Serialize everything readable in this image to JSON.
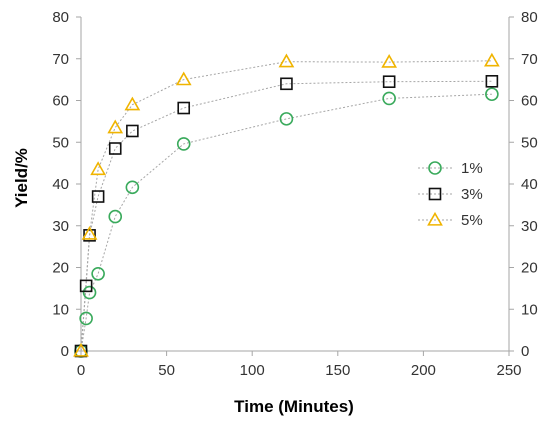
{
  "chart_data": {
    "type": "scatter",
    "xlabel": "Time (Minutes)",
    "ylabel": "Yield/%",
    "xlim": [
      0,
      250
    ],
    "ylim": [
      0,
      80
    ],
    "xticks": [
      0,
      50,
      100,
      150,
      200,
      250
    ],
    "yticks": [
      0,
      10,
      20,
      30,
      40,
      50,
      60,
      70,
      80
    ],
    "secondary_y_axis": true,
    "grid": false,
    "connecting_lines": "dotted",
    "legend_position": "right",
    "series": [
      {
        "name": "1%",
        "marker": "circle",
        "color": "#3aaa5c",
        "x": [
          0,
          3,
          5,
          10,
          20,
          30,
          60,
          120,
          180,
          240
        ],
        "y": [
          0,
          7.8,
          14,
          18.5,
          32.2,
          39.2,
          49.6,
          55.6,
          60.5,
          61.5
        ]
      },
      {
        "name": "3%",
        "marker": "square",
        "color": "#111111",
        "x": [
          0,
          3,
          5,
          10,
          20,
          30,
          60,
          120,
          180,
          240
        ],
        "y": [
          0,
          15.6,
          27.7,
          37,
          48.5,
          52.7,
          58.2,
          64,
          64.5,
          64.6
        ]
      },
      {
        "name": "5%",
        "marker": "triangle",
        "color": "#f0b400",
        "x": [
          0,
          5,
          10,
          20,
          30,
          60,
          120,
          180,
          240
        ],
        "y": [
          0,
          28,
          43.5,
          53.5,
          59,
          65,
          69.3,
          69.2,
          69.5
        ]
      }
    ]
  }
}
